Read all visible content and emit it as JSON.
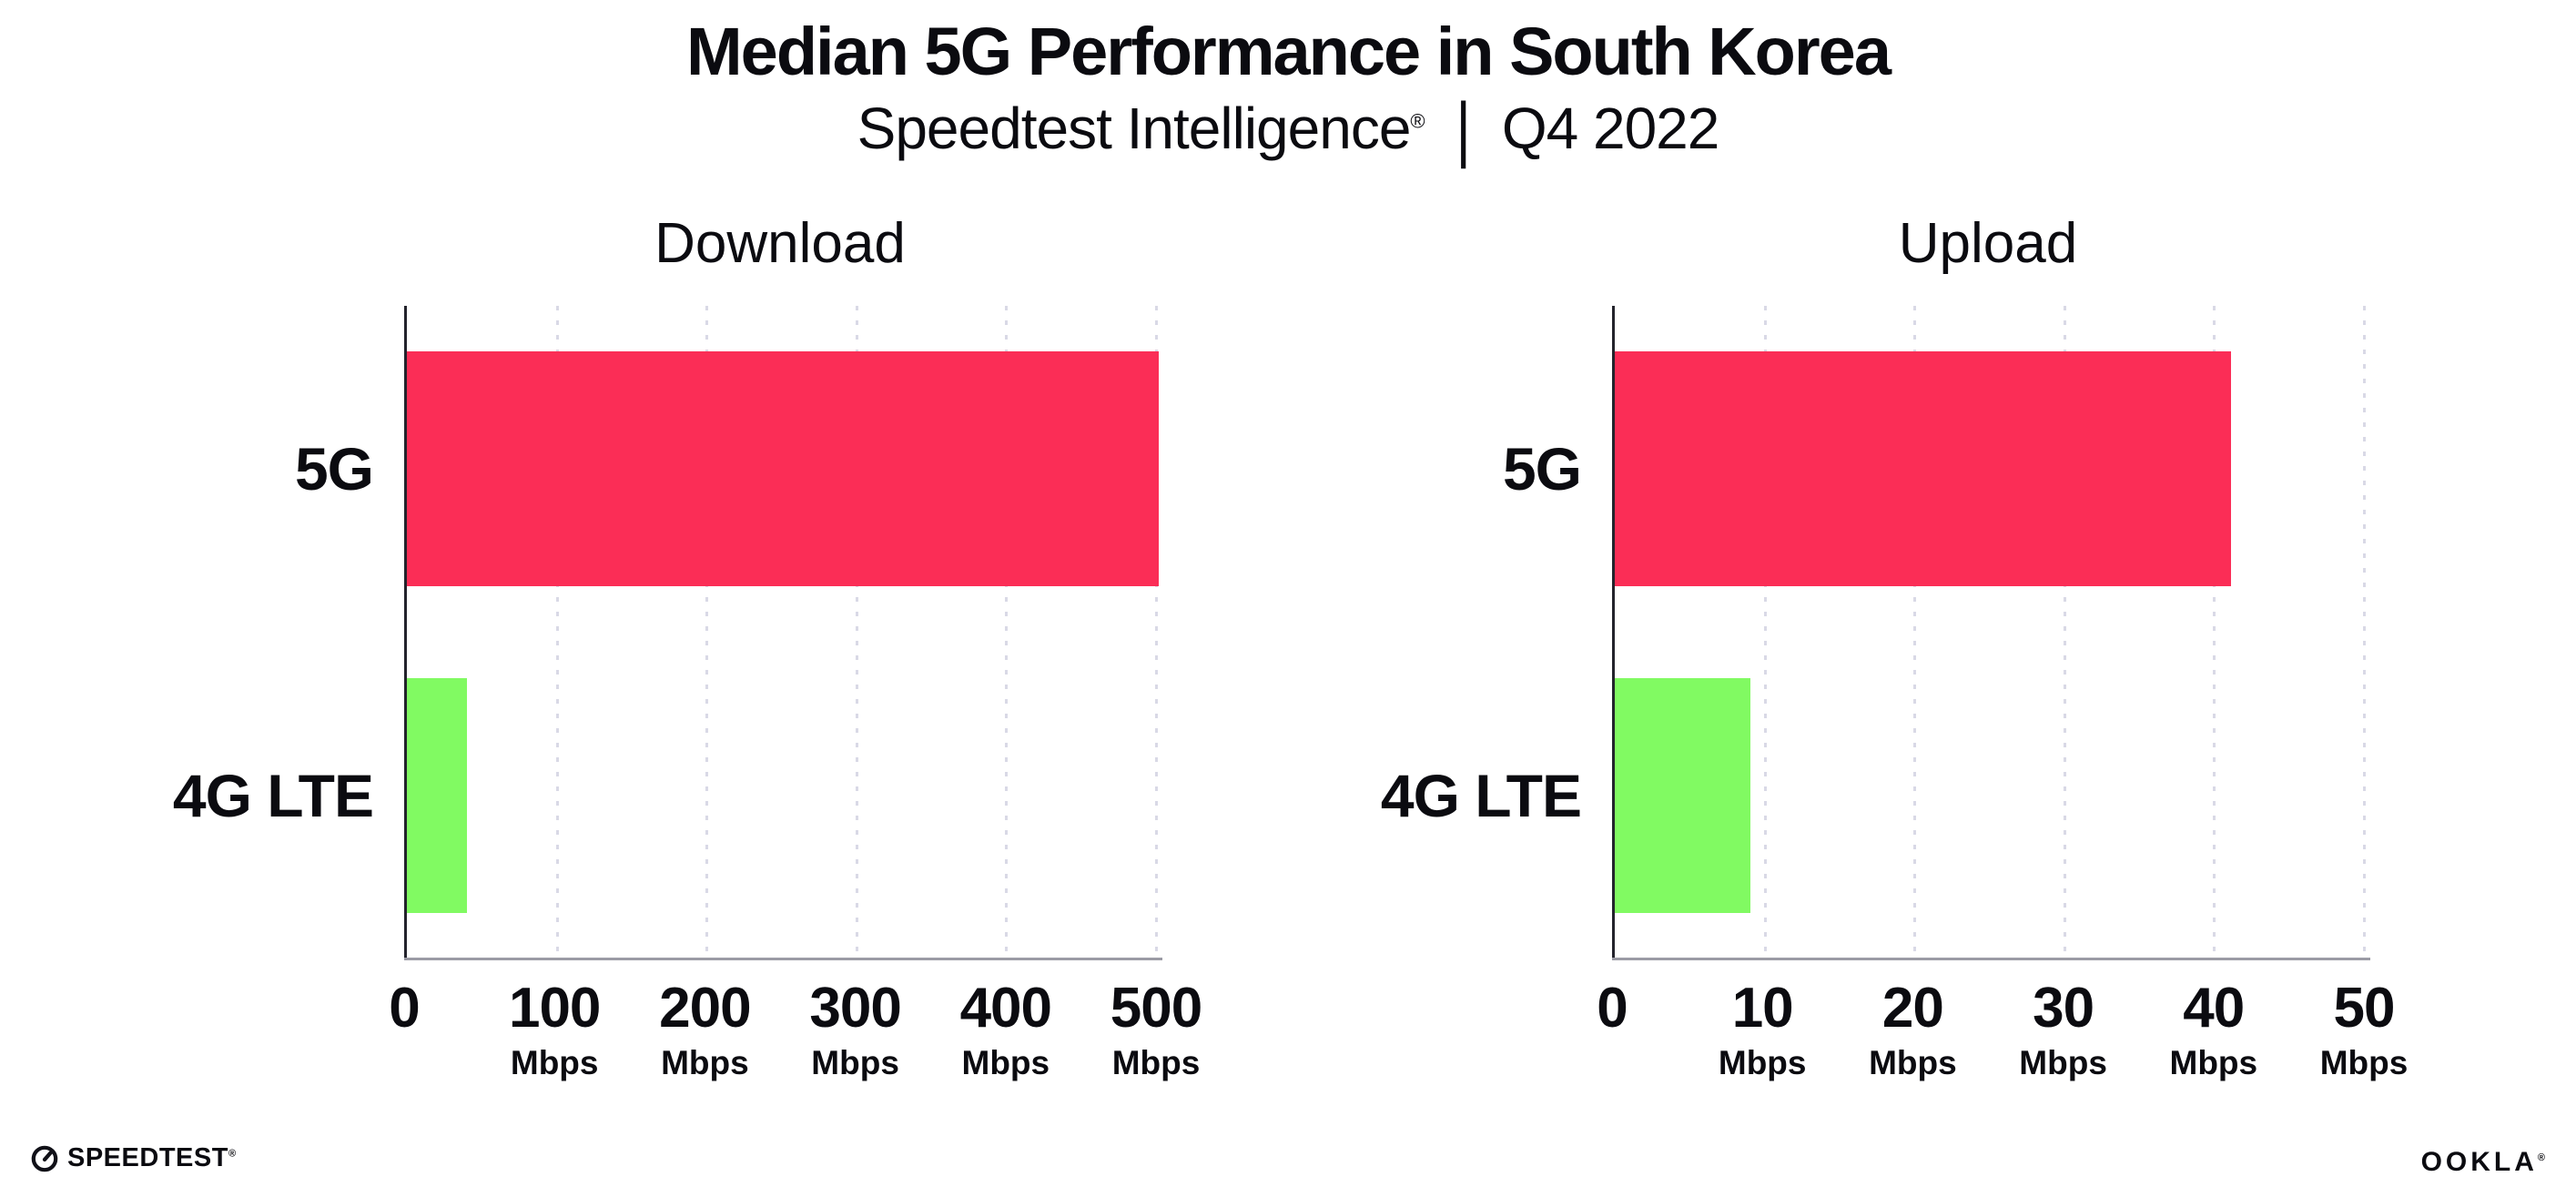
{
  "header": {
    "title": "Median 5G Performance in South Korea",
    "subtitle_brand": "Speedtest Intelligence",
    "subtitle_reg": "®",
    "subtitle_separator": "|",
    "subtitle_period": "Q4 2022"
  },
  "chart_data": [
    {
      "type": "bar",
      "orientation": "horizontal",
      "title": "Download",
      "categories": [
        "5G",
        "4G LTE"
      ],
      "values": [
        500,
        40
      ],
      "unit": "Mbps",
      "xlim": [
        0,
        500
      ],
      "xticks": [
        0,
        100,
        200,
        300,
        400,
        500
      ],
      "bar_colors": [
        "#FB2D56",
        "#81FA62"
      ],
      "grid": "dotted-vertical",
      "legend": "none"
    },
    {
      "type": "bar",
      "orientation": "horizontal",
      "title": "Upload",
      "categories": [
        "5G",
        "4G LTE"
      ],
      "values": [
        41,
        9
      ],
      "unit": "Mbps",
      "xlim": [
        0,
        50
      ],
      "xticks": [
        0,
        10,
        20,
        30,
        40,
        50
      ],
      "bar_colors": [
        "#FB2D56",
        "#81FA62"
      ],
      "grid": "dotted-vertical",
      "legend": "none"
    }
  ],
  "footer": {
    "speedtest_wordmark": "SPEEDTEST",
    "speedtest_reg": "®",
    "ookla_wordmark": "OOKLA",
    "ookla_reg": "®"
  },
  "colors": {
    "bar_5g": "#FB2D56",
    "bar_4g_lte": "#81FA62",
    "gridline": "#D9D9E6",
    "x_axis": "#9B9BA5",
    "y_axis": "#23232C",
    "text": "#0B0B10",
    "background": "#FFFFFF"
  }
}
